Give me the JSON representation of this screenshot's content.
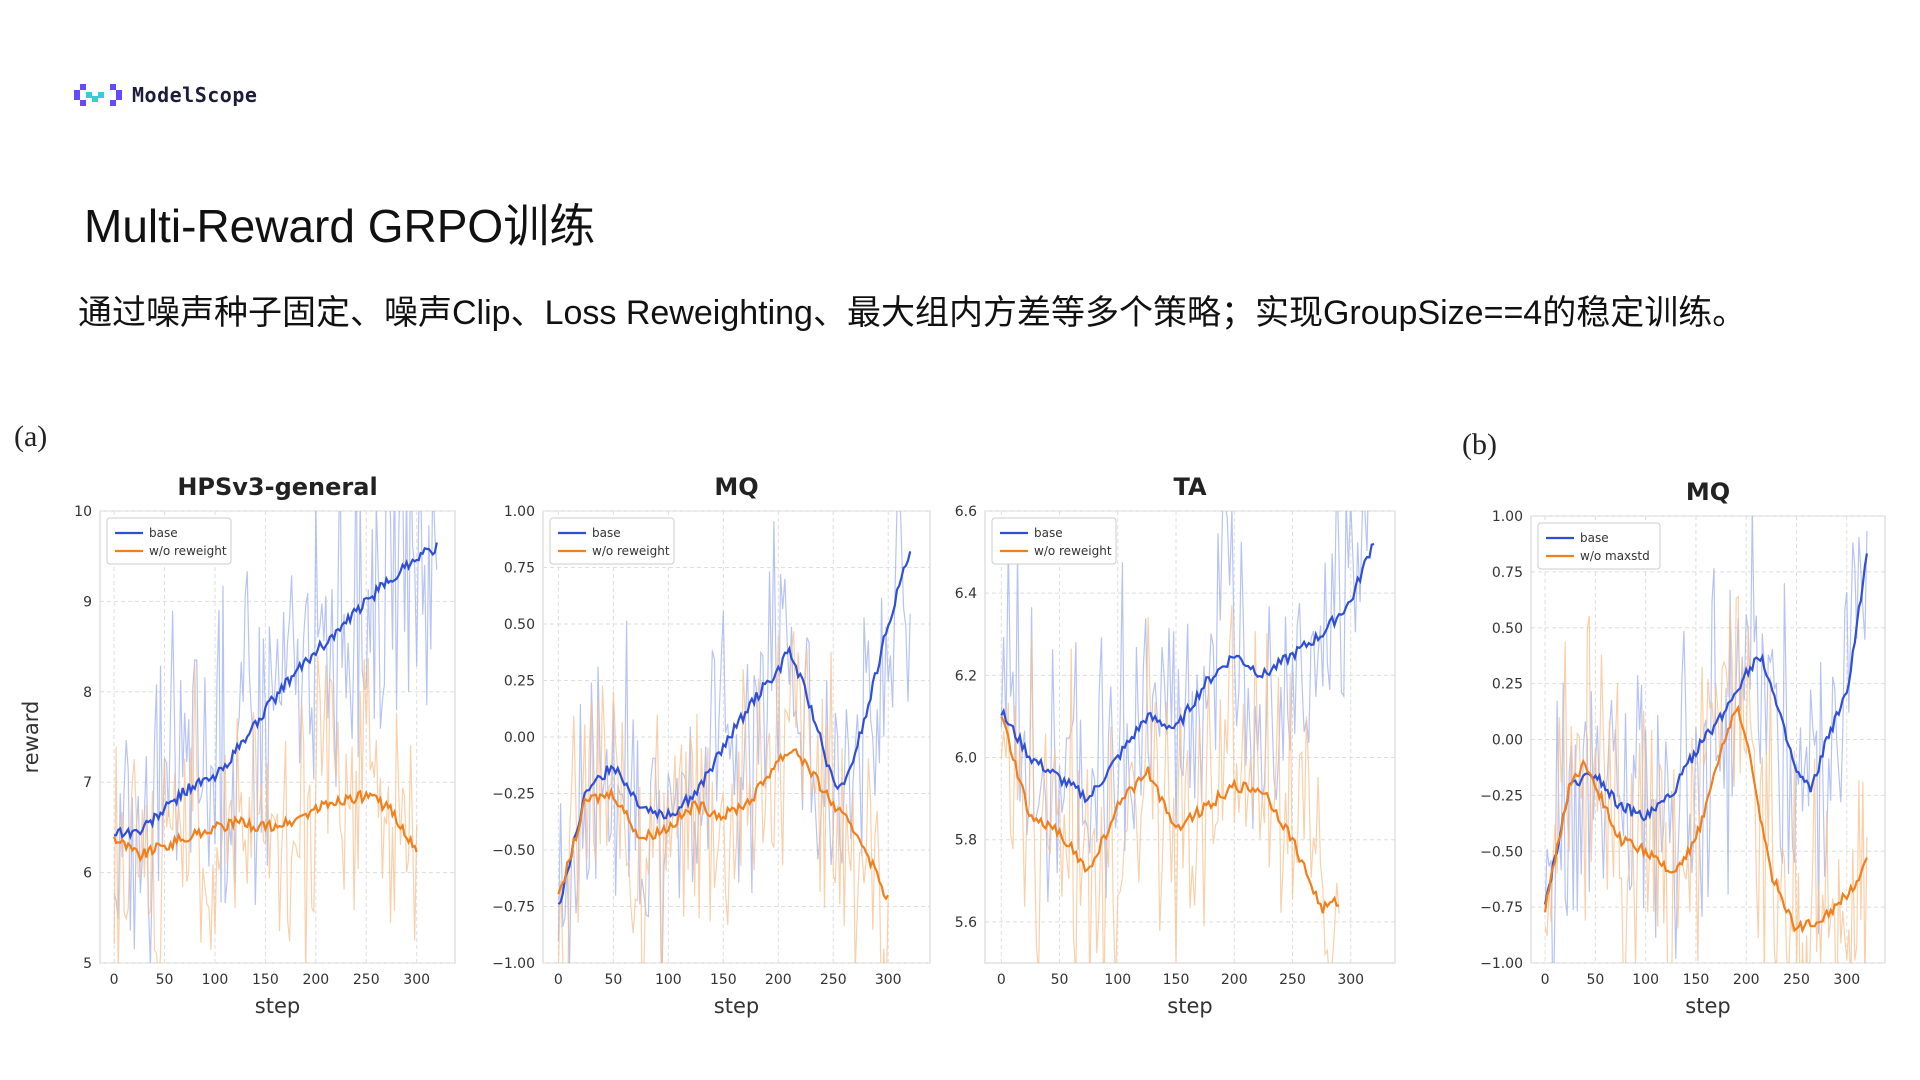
{
  "logo": {
    "text": "ModelScope"
  },
  "slide": {
    "title": "Multi-Reward GRPO训练",
    "subtitle": "通过噪声种子固定、噪声Clip、Loss Reweighting、最大组内方差等多个策略；实现GroupSize==4的稳定训练。"
  },
  "panels": {
    "a": "(a)",
    "b": "(b)"
  },
  "colors": {
    "base": "#2f4fd6",
    "alt": "#f07f1c"
  },
  "chart_data": [
    {
      "type": "line",
      "title": "HPSv3-general",
      "xlabel": "step",
      "ylabel": "reward",
      "xlim": [
        -14,
        338
      ],
      "ylim": [
        5,
        10
      ],
      "xticks": [
        "0",
        "50",
        "100",
        "150",
        "200",
        "250",
        "300"
      ],
      "yticks": [
        "5",
        "6",
        "7",
        "8",
        "9",
        "10"
      ],
      "grid": true,
      "legend": "top-left",
      "series": [
        {
          "name": "base",
          "x": [
            0,
            25,
            50,
            75,
            100,
            125,
            150,
            175,
            200,
            225,
            250,
            275,
            300,
            320
          ],
          "y": [
            6.45,
            6.45,
            6.7,
            6.95,
            7.05,
            7.4,
            7.8,
            8.15,
            8.45,
            8.7,
            9.0,
            9.25,
            9.5,
            9.6
          ]
        },
        {
          "name": "w/o reweight",
          "x": [
            0,
            25,
            50,
            75,
            100,
            125,
            150,
            175,
            200,
            225,
            250,
            275,
            300
          ],
          "y": [
            6.4,
            6.2,
            6.3,
            6.4,
            6.5,
            6.55,
            6.5,
            6.55,
            6.7,
            6.8,
            6.85,
            6.7,
            6.2
          ]
        }
      ]
    },
    {
      "type": "line",
      "title": "MQ",
      "xlabel": "step",
      "ylabel": "",
      "xlim": [
        -14,
        338
      ],
      "ylim": [
        -1.0,
        1.0
      ],
      "xticks": [
        "0",
        "50",
        "100",
        "150",
        "200",
        "250",
        "300"
      ],
      "yticks": [
        "−1.00",
        "−0.75",
        "−0.50",
        "−0.25",
        "0.00",
        "0.25",
        "0.50",
        "0.75",
        "1.00"
      ],
      "grid": true,
      "legend": "top-left",
      "series": [
        {
          "name": "base",
          "x": [
            0,
            25,
            50,
            75,
            100,
            125,
            150,
            175,
            200,
            210,
            225,
            250,
            260,
            280,
            300,
            320
          ],
          "y": [
            -0.75,
            -0.25,
            -0.12,
            -0.3,
            -0.35,
            -0.25,
            -0.05,
            0.15,
            0.3,
            0.38,
            0.2,
            -0.2,
            -0.23,
            0.1,
            0.5,
            0.82
          ]
        },
        {
          "name": "w/o reweight",
          "x": [
            0,
            25,
            50,
            75,
            100,
            125,
            150,
            175,
            200,
            215,
            250,
            275,
            300
          ],
          "y": [
            -0.72,
            -0.28,
            -0.25,
            -0.45,
            -0.4,
            -0.3,
            -0.35,
            -0.28,
            -0.1,
            -0.05,
            -0.3,
            -0.45,
            -0.72
          ]
        }
      ]
    },
    {
      "type": "line",
      "title": "TA",
      "xlabel": "step",
      "ylabel": "",
      "xlim": [
        -14,
        338
      ],
      "ylim": [
        5.5,
        6.6
      ],
      "xticks": [
        "0",
        "50",
        "100",
        "150",
        "200",
        "250",
        "300"
      ],
      "yticks": [
        "5.6",
        "5.8",
        "6.0",
        "6.2",
        "6.4",
        "6.6"
      ],
      "grid": true,
      "legend": "top-left",
      "series": [
        {
          "name": "base",
          "x": [
            0,
            25,
            50,
            75,
            100,
            125,
            150,
            175,
            200,
            225,
            250,
            275,
            300,
            320
          ],
          "y": [
            6.11,
            6.0,
            5.95,
            5.9,
            6.0,
            6.1,
            6.07,
            6.18,
            6.25,
            6.2,
            6.25,
            6.3,
            6.38,
            6.53
          ]
        },
        {
          "name": "w/o reweight",
          "x": [
            0,
            25,
            50,
            75,
            100,
            125,
            150,
            175,
            200,
            225,
            250,
            275,
            290
          ],
          "y": [
            6.1,
            5.85,
            5.82,
            5.72,
            5.88,
            5.97,
            5.83,
            5.88,
            5.93,
            5.92,
            5.8,
            5.63,
            5.65
          ]
        }
      ]
    },
    {
      "type": "line",
      "title": "MQ",
      "xlabel": "step",
      "ylabel": "",
      "xlim": [
        -14,
        338
      ],
      "ylim": [
        -1.0,
        1.0
      ],
      "xticks": [
        "0",
        "50",
        "100",
        "150",
        "200",
        "250",
        "300"
      ],
      "yticks": [
        "−1.00",
        "−0.75",
        "−0.50",
        "−0.25",
        "0.00",
        "0.25",
        "0.50",
        "0.75",
        "1.00"
      ],
      "grid": true,
      "legend": "top-left",
      "series": [
        {
          "name": "base",
          "x": [
            0,
            25,
            50,
            75,
            100,
            125,
            150,
            175,
            200,
            215,
            250,
            265,
            280,
            300,
            320
          ],
          "y": [
            -0.75,
            -0.2,
            -0.15,
            -0.3,
            -0.35,
            -0.25,
            -0.05,
            0.1,
            0.3,
            0.38,
            -0.15,
            -0.23,
            0.0,
            0.2,
            0.82
          ]
        },
        {
          "name": "w/o maxstd",
          "x": [
            0,
            25,
            40,
            75,
            100,
            125,
            150,
            175,
            190,
            200,
            225,
            250,
            275,
            300,
            320
          ],
          "y": [
            -0.75,
            -0.2,
            -0.1,
            -0.45,
            -0.5,
            -0.6,
            -0.45,
            -0.05,
            0.15,
            0.0,
            -0.6,
            -0.85,
            -0.8,
            -0.7,
            -0.55
          ]
        }
      ]
    }
  ]
}
